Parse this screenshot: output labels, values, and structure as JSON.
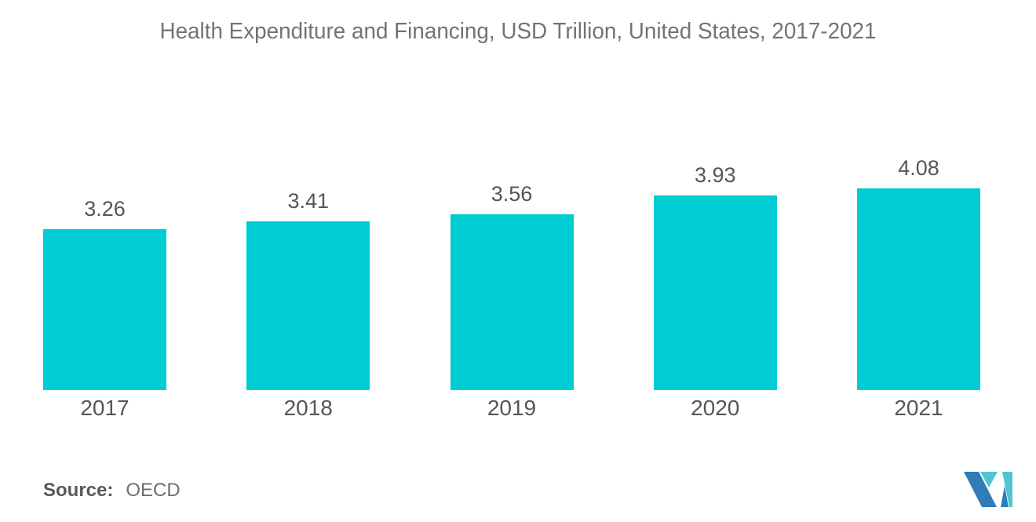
{
  "chart_data": {
    "type": "bar",
    "title": "Health Expenditure and Financing, USD Trillion, United States, 2017-2021",
    "categories": [
      "2017",
      "2018",
      "2019",
      "2020",
      "2021"
    ],
    "values": [
      3.26,
      3.41,
      3.56,
      3.93,
      4.08
    ],
    "value_labels": [
      "3.26",
      "3.41",
      "3.56",
      "3.93",
      "4.08"
    ],
    "xlabel": "",
    "ylabel": "",
    "ylim": [
      0,
      4.5
    ],
    "grid": false,
    "legend_position": "none",
    "bar_color": "#00CCD4",
    "label_color": "#565659",
    "title_color": "#717377"
  },
  "source": {
    "label": "Source:",
    "value": "OECD"
  },
  "logo": {
    "name": "mordor-intelligence-logo",
    "blue": "#2E7CB8",
    "teal": "#4FC5D2"
  }
}
